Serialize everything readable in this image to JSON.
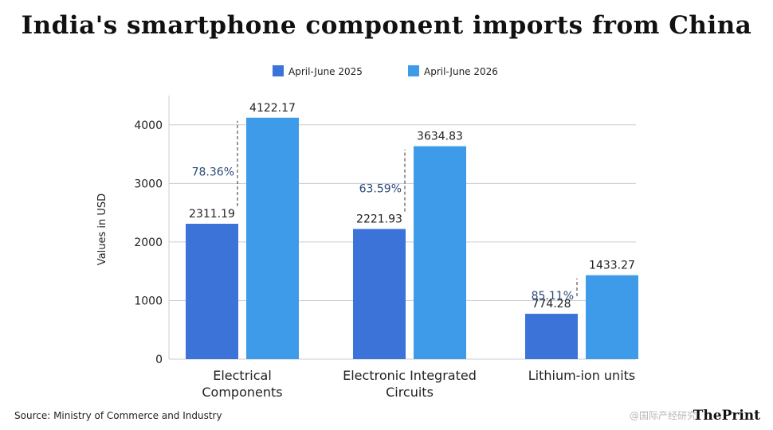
{
  "chart_data": {
    "type": "bar",
    "title": "India's smartphone component imports from China",
    "ylabel": "Values in USD",
    "xlabel": "",
    "ylim": [
      0,
      4500
    ],
    "yticks": [
      0,
      1000,
      2000,
      3000,
      4000
    ],
    "grid": true,
    "legend_position": "top-center",
    "categories": [
      [
        "Electrical",
        "Components"
      ],
      [
        "Electronic Integrated",
        "Circuits"
      ],
      [
        "Lithium-ion units"
      ]
    ],
    "series": [
      {
        "name": "April-June 2025",
        "color": "#3b73d9",
        "values": [
          2311.19,
          2221.93,
          774.28
        ],
        "labels": [
          "2311.19",
          "2221.93",
          "774.28"
        ]
      },
      {
        "name": "April-June 2026",
        "color": "#3d9be9",
        "values": [
          4122.17,
          3634.83,
          1433.27
        ],
        "labels": [
          "4122.17",
          "3634.83",
          "1433.27"
        ]
      }
    ],
    "growth_annotations": [
      "78.36%",
      "63.59%",
      "85.11%"
    ]
  },
  "source": "Source: Ministry of Commerce and Industry",
  "logo": "ThePrint",
  "watermark": "@国际产经研究"
}
